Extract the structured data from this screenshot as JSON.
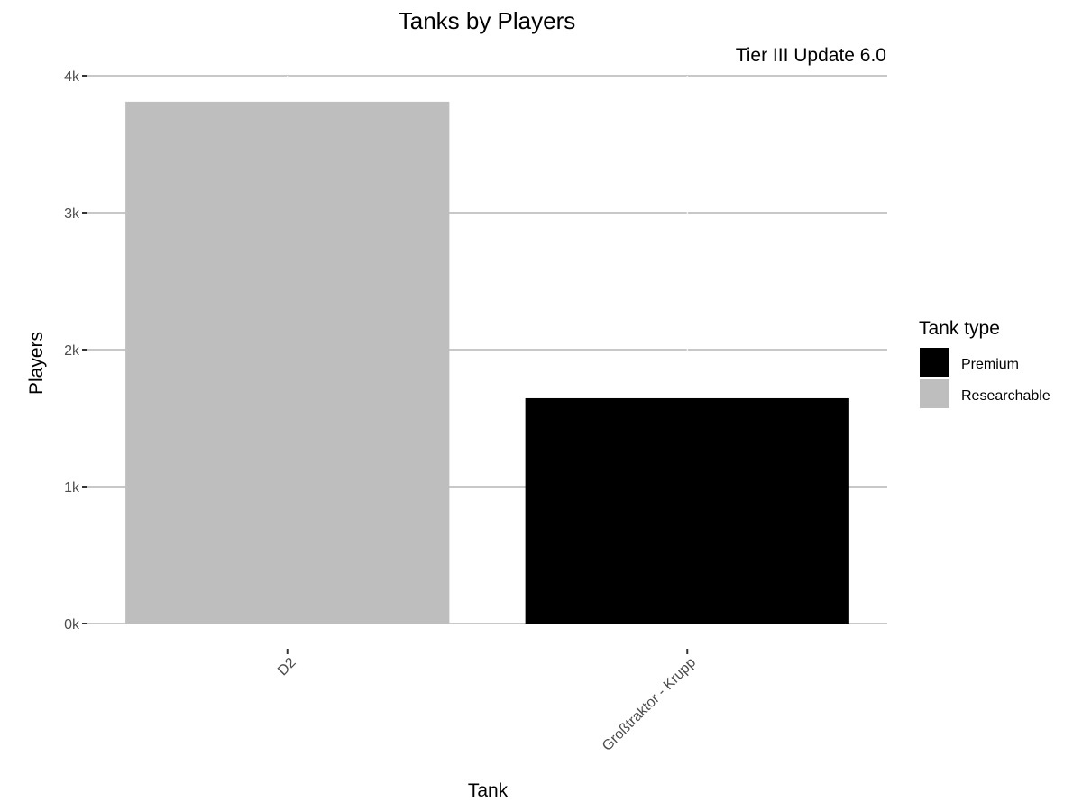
{
  "chart_data": {
    "type": "bar",
    "title": "Tanks by Players",
    "subtitle": "Tier III Update 6.0",
    "xlabel": "Tank",
    "ylabel": "Players",
    "categories": [
      "D2",
      "Großtraktor - Krupp"
    ],
    "values": [
      3810,
      1645
    ],
    "bar_types": [
      "Researchable",
      "Premium"
    ],
    "ylim": [
      0,
      4000
    ],
    "yticks": [
      0,
      1000,
      2000,
      3000,
      4000
    ],
    "ytick_labels": [
      "0k",
      "1k",
      "2k",
      "3k",
      "4k"
    ],
    "grid": true,
    "legend": {
      "title": "Tank type",
      "position": "right",
      "entries": [
        {
          "label": "Premium",
          "color": "#000000"
        },
        {
          "label": "Researchable",
          "color": "#bebebe"
        }
      ]
    }
  }
}
